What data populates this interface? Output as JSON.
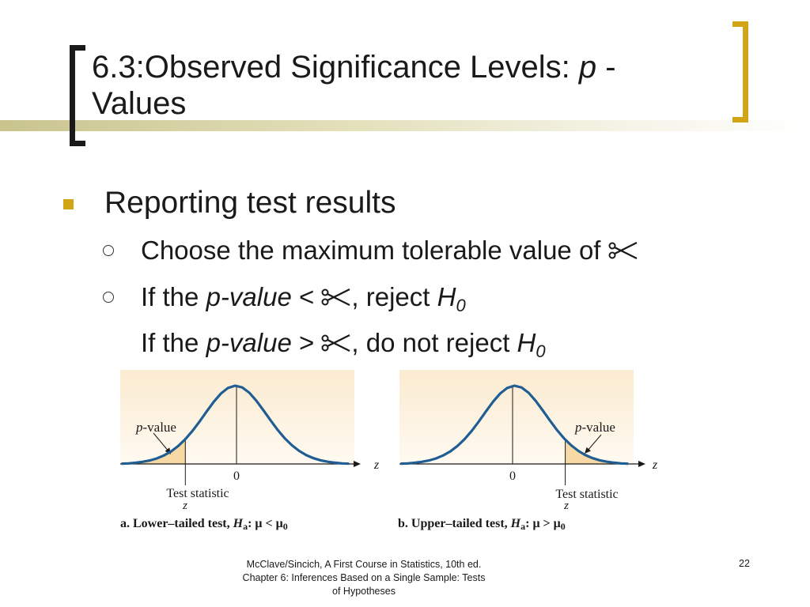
{
  "slide": {
    "title_part1": "6.3:Observed Significance Levels: ",
    "title_italic": "p",
    "title_part2": " -",
    "title_line2": "Values"
  },
  "bullets": {
    "level1": "Reporting test results",
    "line1": "Choose the maximum tolerable value of ",
    "line2_a": "If the ",
    "line2_pvalue": "p-value",
    "line2_b": " < ",
    "line2_c": ", reject ",
    "line3_a": "If the ",
    "line3_pvalue": "p-value",
    "line3_b": " > ",
    "line3_c": ", do not reject ",
    "h_letter": "H",
    "h_sub": "0",
    "alpha_symbol": "scissors-icon"
  },
  "figure": {
    "left": {
      "pvalue_p": "p",
      "pvalue_rest": "-value",
      "zero": "0",
      "test_statistic": "Test statistic",
      "z_below": "z",
      "axis_z": "z",
      "caption_a": "a. Lower–tailed test, ",
      "caption_h": "H",
      "caption_sub": "a",
      "caption_b": ": μ < μ",
      "caption_sub0": "0"
    },
    "right": {
      "pvalue_p": "p",
      "pvalue_rest": "-value",
      "zero": "0",
      "test_statistic": "Test statistic",
      "z_below": "z",
      "axis_z": "z",
      "caption_a": "b. Upper–tailed test, ",
      "caption_h": "H",
      "caption_sub": "a",
      "caption_b": ": μ > μ",
      "caption_sub0": "0"
    },
    "colors": {
      "curve": "#1f5d93",
      "shade": "#f6d9a4",
      "panel_top": "#fbebd0",
      "axis": "#1a1a1a"
    }
  },
  "footer": {
    "line1": "McClave/Sincich, A First Course in Statistics, 10th ed.",
    "line2": "Chapter 6:  Inferences Based on a Single Sample: Tests",
    "line3": "of Hypotheses",
    "page_number": "22"
  }
}
